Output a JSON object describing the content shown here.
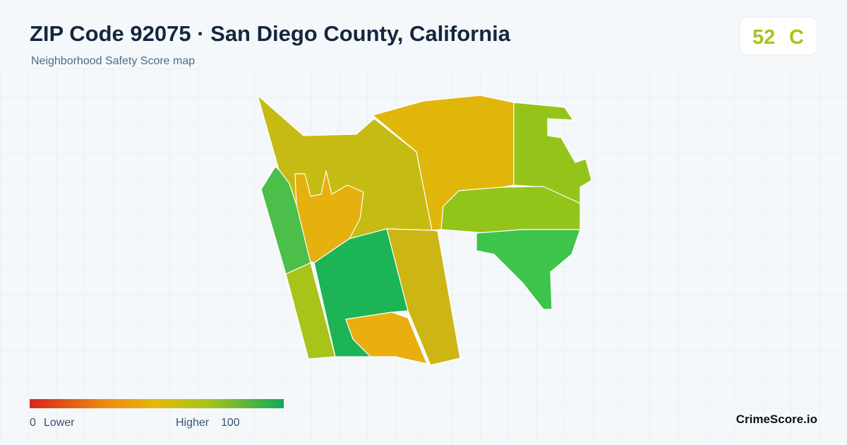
{
  "header": {
    "title": "ZIP Code 92075 · San Diego County, California",
    "subtitle": "Neighborhood Safety Score map"
  },
  "score": {
    "value": "52",
    "grade": "C"
  },
  "legend": {
    "min": "0",
    "min_label": "Lower",
    "max_label": "Higher",
    "max": "100"
  },
  "footer": {
    "brand": "CrimeScore.io"
  }
}
